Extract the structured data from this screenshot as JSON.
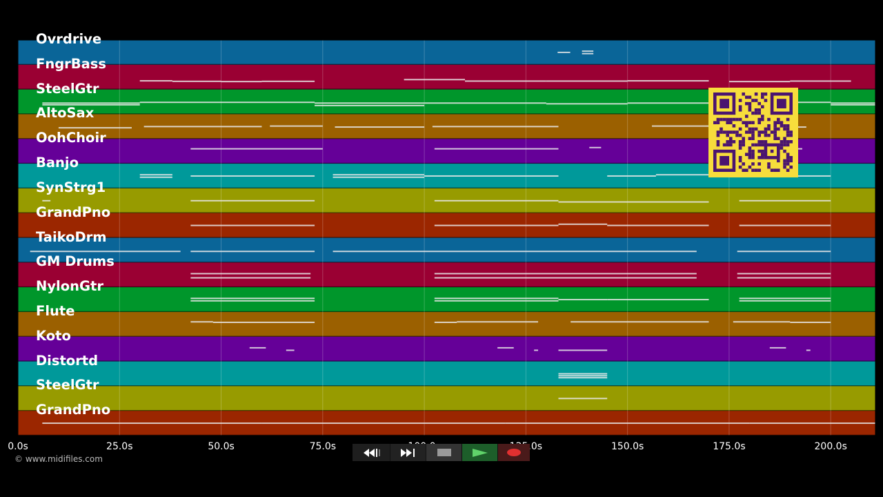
{
  "colors": {
    "lanes": [
      "#0a6598",
      "#9a0033",
      "#00962b",
      "#9b6000",
      "#650098",
      "#00999a",
      "#979b00",
      "#9b2600"
    ],
    "note": "#e8e8e8",
    "grid": "#ffffff",
    "qr_bg": "#f7dd3c",
    "qr_fg": "#4a1470"
  },
  "tracks": [
    {
      "label": "Ovrdrive",
      "notes": [
        [
          132.8,
          135.9,
          0.5
        ],
        [
          138.8,
          141.6,
          0.45
        ],
        [
          138.8,
          141.6,
          0.55
        ]
      ]
    },
    {
      "label": "FngrBass",
      "notes": [
        [
          30,
          38,
          0.65
        ],
        [
          38,
          50,
          0.67
        ],
        [
          50,
          60,
          0.68
        ],
        [
          60,
          73,
          0.67
        ],
        [
          95,
          110,
          0.6
        ],
        [
          110,
          130,
          0.66
        ],
        [
          130,
          150,
          0.66
        ],
        [
          150,
          170,
          0.65
        ],
        [
          175,
          190,
          0.68
        ],
        [
          190,
          205,
          0.66
        ]
      ]
    },
    {
      "label": "SteelGtr",
      "notes": [
        [
          6,
          30,
          0.55
        ],
        [
          6,
          30,
          0.62
        ],
        [
          30,
          73,
          0.52
        ],
        [
          73,
          100,
          0.55
        ],
        [
          73,
          100,
          0.65
        ],
        [
          100,
          130,
          0.55
        ],
        [
          130,
          150,
          0.58
        ],
        [
          150,
          170,
          0.55
        ],
        [
          175,
          200,
          0.52
        ],
        [
          200,
          211,
          0.55
        ],
        [
          200,
          211,
          0.62
        ]
      ]
    },
    {
      "label": "AltoSax",
      "notes": [
        [
          10,
          28,
          0.55
        ],
        [
          31,
          60,
          0.5
        ],
        [
          62,
          75,
          0.48
        ],
        [
          78,
          100,
          0.52
        ],
        [
          102,
          133,
          0.5
        ],
        [
          156,
          170,
          0.48
        ],
        [
          175,
          194,
          0.52
        ]
      ]
    },
    {
      "label": "OohChoir",
      "notes": [
        [
          42.5,
          75,
          0.4
        ],
        [
          102.5,
          133,
          0.4
        ],
        [
          140.6,
          143.5,
          0.35
        ],
        [
          175,
          180,
          0.4
        ],
        [
          181,
          193,
          0.4
        ]
      ]
    },
    {
      "label": "Banjo",
      "notes": [
        [
          30,
          38,
          0.45
        ],
        [
          30,
          38,
          0.55
        ],
        [
          42.5,
          73,
          0.5
        ],
        [
          77.5,
          100,
          0.45
        ],
        [
          77.5,
          100,
          0.55
        ],
        [
          100,
          133,
          0.5
        ],
        [
          145,
          157,
          0.5
        ],
        [
          157,
          170,
          0.45
        ],
        [
          175,
          200,
          0.5
        ]
      ]
    },
    {
      "label": "SynStrg1",
      "notes": [
        [
          6,
          8,
          0.5
        ],
        [
          42.5,
          73,
          0.5
        ],
        [
          102.5,
          133,
          0.5
        ],
        [
          133,
          170,
          0.55
        ],
        [
          177.5,
          200,
          0.5
        ]
      ]
    },
    {
      "label": "GrandPno",
      "notes": [
        [
          42.5,
          73,
          0.5
        ],
        [
          102.5,
          133,
          0.5
        ],
        [
          133,
          145,
          0.45
        ],
        [
          145,
          170,
          0.5
        ],
        [
          177.5,
          200,
          0.5
        ]
      ]
    },
    {
      "label": "TaikoDrm",
      "notes": [
        [
          3,
          40,
          0.55
        ],
        [
          42.5,
          73,
          0.55
        ],
        [
          77.5,
          167,
          0.55
        ],
        [
          177,
          200,
          0.55
        ]
      ]
    },
    {
      "label": "GM Drums",
      "notes": [
        [
          42.5,
          72,
          0.45
        ],
        [
          42.5,
          72,
          0.62
        ],
        [
          102.5,
          167,
          0.45
        ],
        [
          102.5,
          167,
          0.62
        ],
        [
          177,
          200,
          0.45
        ],
        [
          177,
          200,
          0.62
        ]
      ]
    },
    {
      "label": "NylonGtr",
      "notes": [
        [
          42.5,
          73,
          0.45
        ],
        [
          42.5,
          73,
          0.55
        ],
        [
          102.5,
          133,
          0.45
        ],
        [
          102.5,
          133,
          0.55
        ],
        [
          133,
          145,
          0.5
        ],
        [
          145,
          170,
          0.5
        ],
        [
          177.5,
          200,
          0.45
        ],
        [
          177.5,
          200,
          0.55
        ]
      ]
    },
    {
      "label": "Flute",
      "notes": [
        [
          42.5,
          48,
          0.4
        ],
        [
          48,
          73,
          0.42
        ],
        [
          102.5,
          108,
          0.42
        ],
        [
          108,
          128,
          0.4
        ],
        [
          136,
          170,
          0.4
        ],
        [
          176,
          190,
          0.4
        ],
        [
          190,
          200,
          0.42
        ]
      ]
    },
    {
      "label": "Koto",
      "notes": [
        [
          57,
          61,
          0.45
        ],
        [
          66,
          68,
          0.55
        ],
        [
          118,
          122,
          0.45
        ],
        [
          127,
          128,
          0.55
        ],
        [
          133,
          145,
          0.55
        ],
        [
          185,
          189,
          0.45
        ],
        [
          194,
          195,
          0.55
        ]
      ]
    },
    {
      "label": "Distortd",
      "notes": [
        [
          133,
          145,
          0.5
        ],
        [
          133,
          145,
          0.58
        ],
        [
          133,
          145,
          0.66
        ]
      ]
    },
    {
      "label": "SteelGtr",
      "notes": [
        [
          133,
          145,
          0.5
        ]
      ]
    },
    {
      "label": "GrandPno",
      "notes": [
        [
          6,
          60,
          0.5
        ],
        [
          60,
          120,
          0.5
        ],
        [
          120,
          180,
          0.5
        ],
        [
          180,
          211,
          0.5
        ]
      ]
    }
  ],
  "axis": {
    "min": 0,
    "max": 211,
    "ticks": [
      {
        "value": 0,
        "label": "0.0s"
      },
      {
        "value": 25,
        "label": "25.0s"
      },
      {
        "value": 50,
        "label": "50.0s"
      },
      {
        "value": 75,
        "label": "75.0s"
      },
      {
        "value": 100,
        "label": "100.0s"
      },
      {
        "value": 125,
        "label": "125.0s"
      },
      {
        "value": 150,
        "label": "150.0s"
      },
      {
        "value": 175,
        "label": "175.0s"
      },
      {
        "value": 200,
        "label": "200.0s"
      }
    ]
  },
  "copyright": "© www.midifiles.com",
  "transport": {
    "rewind": "rewind-icon",
    "fast_forward": "fast-forward-icon",
    "stop": "stop-icon",
    "play": "play-icon",
    "record": "record-icon"
  },
  "qr_code": "qr-code-icon"
}
